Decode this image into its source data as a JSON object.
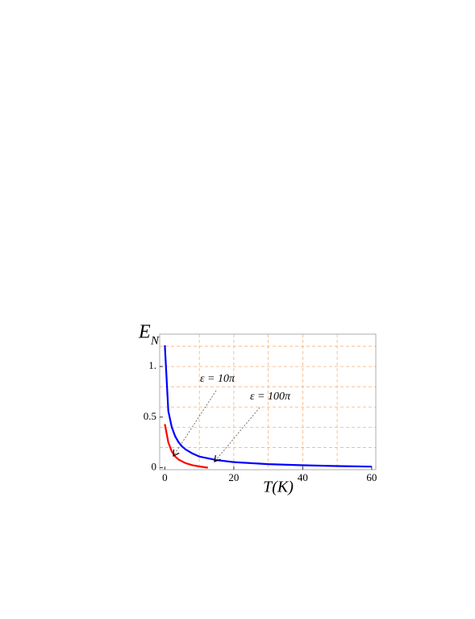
{
  "chart_data": {
    "type": "line",
    "x_label": "T(K)",
    "y_label": "E",
    "y_label_sub": "N",
    "series": [
      {
        "name": "ε = 100π",
        "color": "#0000ff",
        "x": [
          0,
          1,
          2,
          3,
          4,
          5,
          6,
          8,
          10,
          15,
          20,
          30,
          40,
          50,
          60
        ],
        "values": [
          1.21,
          0.56,
          0.4,
          0.31,
          0.25,
          0.21,
          0.18,
          0.14,
          0.11,
          0.075,
          0.055,
          0.035,
          0.024,
          0.016,
          0.01
        ]
      },
      {
        "name": "ε = 10π",
        "color": "#ff0000",
        "x": [
          0,
          1,
          2,
          3,
          4,
          6,
          8,
          10,
          12.5
        ],
        "values": [
          0.43,
          0.25,
          0.16,
          0.11,
          0.08,
          0.045,
          0.025,
          0.012,
          0
        ]
      }
    ],
    "xlim": [
      -1.5,
      61.2
    ],
    "ylim": [
      -0.02,
      1.32
    ],
    "xticks": [
      0,
      20,
      40,
      60
    ],
    "yticks": [
      0,
      0.5,
      {
        "value": 1,
        "label": "1."
      }
    ],
    "xgrid": [
      10,
      20,
      30,
      40,
      50
    ],
    "ygrid": [
      0.2,
      0.4,
      0.6,
      0.8,
      1,
      1.2
    ],
    "grid_color": "#f5b27a"
  }
}
